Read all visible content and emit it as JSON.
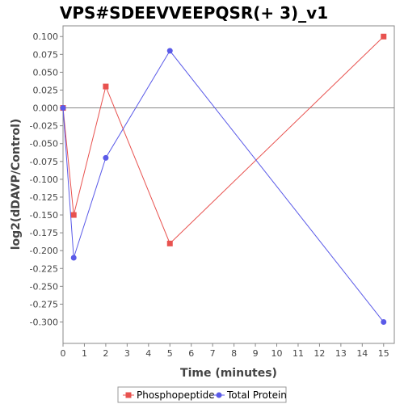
{
  "chart_data": {
    "type": "line",
    "title": "VPS#SDEEVVEEPQSR(+ 3)_v1",
    "xlabel": "Time (minutes)",
    "ylabel": "log2(dDAVP/Control)",
    "xlim": [
      0,
      15.5
    ],
    "ylim": [
      -0.33,
      0.115
    ],
    "x_ticks": [
      0,
      1,
      2,
      3,
      4,
      5,
      6,
      7,
      8,
      9,
      10,
      11,
      12,
      13,
      14,
      15
    ],
    "y_ticks": [
      0.1,
      0.075,
      0.05,
      0.025,
      0.0,
      -0.025,
      -0.05,
      -0.075,
      -0.1,
      -0.125,
      -0.15,
      -0.175,
      -0.2,
      -0.225,
      -0.25,
      -0.275,
      -0.3
    ],
    "y_tick_labels": [
      "0.100",
      "0.075",
      "0.050",
      "0.025",
      "0.000",
      "-0.025",
      "-0.050",
      "-0.075",
      "-0.100",
      "-0.125",
      "-0.150",
      "-0.175",
      "-0.200",
      "-0.225",
      "-0.250",
      "-0.275",
      "-0.300"
    ],
    "zero_line": true,
    "grid": false,
    "legend_position": "bottom",
    "series": [
      {
        "name": "Phosphopeptide",
        "color": "#e8524f",
        "marker": "square",
        "x": [
          0,
          0.5,
          2,
          5,
          15
        ],
        "y": [
          0.0,
          -0.15,
          0.03,
          -0.19,
          0.1
        ]
      },
      {
        "name": "Total Protein",
        "color": "#5a5ae8",
        "marker": "circle",
        "x": [
          0,
          0.5,
          2,
          5,
          15
        ],
        "y": [
          0.0,
          -0.21,
          -0.07,
          0.08,
          -0.3
        ]
      }
    ]
  }
}
